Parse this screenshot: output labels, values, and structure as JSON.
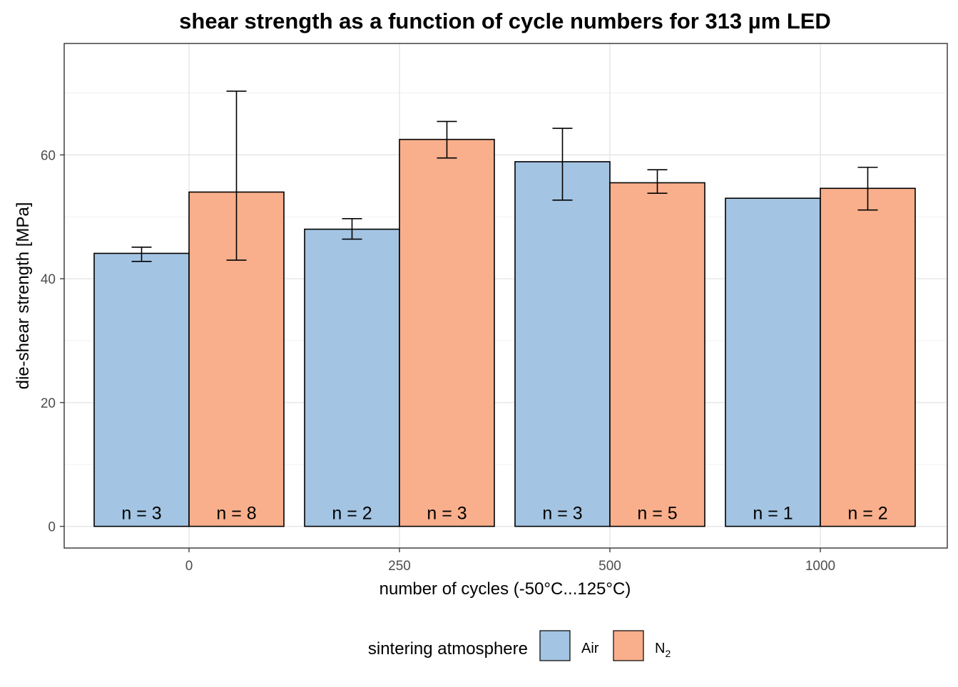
{
  "chart_data": {
    "type": "bar",
    "title": "shear strength as a function of cycle numbers for 313 µm LED",
    "xlabel": "number of cycles (-50°C...125°C)",
    "ylabel": "die-shear strength [MPa]",
    "categories": [
      "0",
      "250",
      "500",
      "1000"
    ],
    "yticks": [
      0,
      20,
      40,
      60
    ],
    "ylim": [
      -3.5,
      78
    ],
    "grid": true,
    "legend": {
      "title": "sintering atmosphere",
      "position": "bottom",
      "entries": [
        {
          "label": "Air",
          "color": "#a3c4e2"
        },
        {
          "label": "N",
          "subscript": "2",
          "color": "#f9af8c"
        }
      ]
    },
    "series": [
      {
        "name": "Air",
        "color": "#a3c4e2",
        "values": [
          44.1,
          48.0,
          58.9,
          53.0
        ],
        "err_low": [
          42.8,
          46.4,
          52.7,
          null
        ],
        "err_high": [
          45.1,
          49.7,
          64.3,
          null
        ],
        "n_labels": [
          "n = 3",
          "n = 2",
          "n = 3",
          "n = 1"
        ]
      },
      {
        "name": "N",
        "color": "#f9af8c",
        "values": [
          54.0,
          62.5,
          55.5,
          54.6
        ],
        "err_low": [
          43.0,
          59.5,
          53.8,
          51.1
        ],
        "err_high": [
          70.3,
          65.4,
          57.6,
          58.0
        ],
        "n_labels": [
          "n = 8",
          "n = 3",
          "n = 5",
          "n = 2"
        ]
      }
    ]
  }
}
